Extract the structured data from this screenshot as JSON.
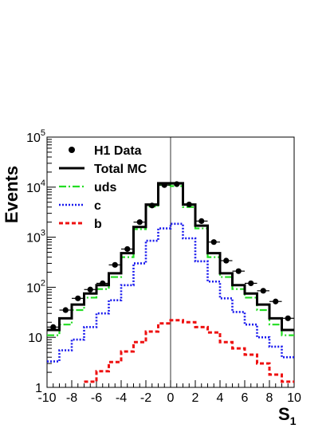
{
  "chart_data": {
    "type": "histogram",
    "ylabel": "Events",
    "xlabel_main": "S",
    "xlabel_sub": "1",
    "xlim": [
      -10,
      10
    ],
    "ylim": [
      1,
      100000
    ],
    "yscale": "log",
    "x_ticks": [
      "-10",
      "-8",
      "-6",
      "-4",
      "-2",
      "0",
      "2",
      "4",
      "6",
      "8",
      "10"
    ],
    "y_ticks": [
      {
        "base": "1",
        "exp": ""
      },
      {
        "base": "10",
        "exp": ""
      },
      {
        "base": "10",
        "exp": "2"
      },
      {
        "base": "10",
        "exp": "3"
      },
      {
        "base": "10",
        "exp": "4"
      },
      {
        "base": "10",
        "exp": "5"
      }
    ],
    "legend_position": "top-left",
    "bin_edges": [
      -10,
      -9,
      -8,
      -7,
      -6,
      -5,
      -4,
      -3,
      -2,
      -1,
      0,
      1,
      2,
      3,
      4,
      5,
      6,
      7,
      8,
      9,
      10
    ],
    "series": [
      {
        "name": "H1 Data",
        "style": "points",
        "color": "#000000",
        "values": [
          16,
          35,
          60,
          90,
          120,
          280,
          580,
          2000,
          4300,
          11000,
          11500,
          4500,
          2100,
          800,
          340,
          210,
          120,
          85,
          52,
          24
        ]
      },
      {
        "name": "Total MC",
        "style": "solid",
        "color": "#000000",
        "values": [
          14,
          24,
          45,
          75,
          110,
          190,
          480,
          1600,
          4500,
          12000,
          12000,
          4500,
          1700,
          480,
          190,
          110,
          75,
          45,
          24,
          14
        ]
      },
      {
        "name": "uds",
        "style": "dashdot",
        "color": "#22dd22",
        "values": [
          11,
          18,
          35,
          62,
          92,
          160,
          400,
          1450,
          4100,
          11000,
          10500,
          4000,
          1500,
          400,
          160,
          92,
          62,
          35,
          18,
          11
        ]
      },
      {
        "name": "c",
        "style": "dotted",
        "color": "#1a1aee",
        "values": [
          3.3,
          5.5,
          9,
          16,
          30,
          55,
          110,
          300,
          850,
          1500,
          1850,
          950,
          330,
          130,
          60,
          32,
          18,
          10,
          6.5,
          4
        ]
      },
      {
        "name": "b",
        "style": "dashed",
        "color": "#ee1111",
        "values": [
          null,
          null,
          null,
          1.3,
          2.1,
          3.2,
          5.2,
          8,
          13,
          19,
          22,
          20,
          16,
          12.5,
          8,
          6,
          4.5,
          3,
          1.8,
          1.3
        ]
      }
    ]
  }
}
